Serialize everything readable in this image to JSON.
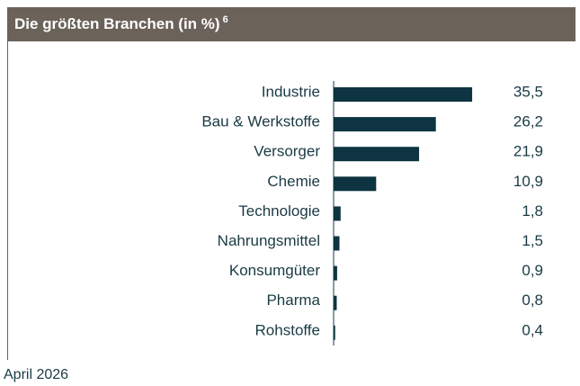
{
  "chart_data": {
    "type": "bar",
    "orientation": "horizontal",
    "title": "Die größten Branchen (in %)",
    "title_note": "6",
    "categories": [
      "Industrie",
      "Bau & Werkstoffe",
      "Versorger",
      "Chemie",
      "Technologie",
      "Nahrungsmittel",
      "Konsumgüter",
      "Pharma",
      "Rohstoffe"
    ],
    "values": [
      35.5,
      26.2,
      21.9,
      10.9,
      1.8,
      1.5,
      0.9,
      0.8,
      0.4
    ],
    "value_labels": [
      "35,5",
      "26,2",
      "21,9",
      "10,9",
      "1,8",
      "1,5",
      "0,9",
      "0,8",
      "0,4"
    ],
    "color": "#0d3440",
    "footnote": "April 2026"
  }
}
